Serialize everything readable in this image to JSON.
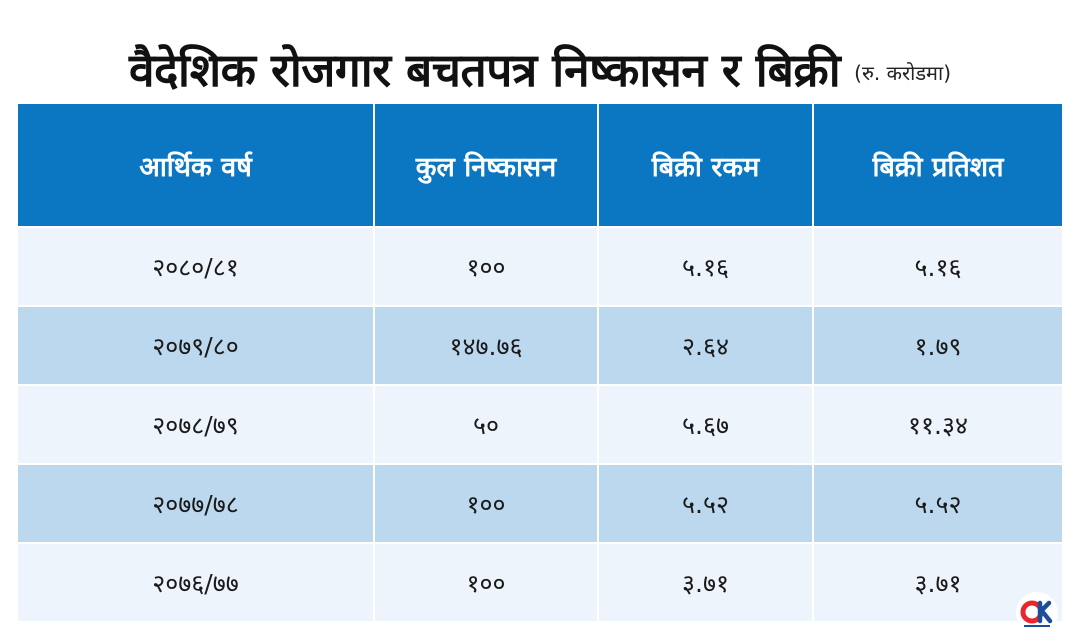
{
  "title": "वैदेशिक रोजगार बचतपत्र निष्कासन र बिक्री",
  "unit": "(रु. करोडमा)",
  "columns": [
    "आर्थिक वर्ष",
    "कुल निष्कासन",
    "बिक्री रकम",
    "बिक्री प्रतिशत"
  ],
  "rows": [
    [
      "२०८०/८१",
      "१००",
      "५.१६",
      "५.१६"
    ],
    [
      "२०७९/८०",
      "१४७.७६",
      "२.६४",
      "१.७९"
    ],
    [
      "२०७८/७९",
      "५०",
      "५.६७",
      "११.३४"
    ],
    [
      "२०७७/७८",
      "१००",
      "५.५२",
      "५.५२"
    ],
    [
      "२०७६/७७",
      "१००",
      "३.७१",
      "३.७१"
    ]
  ],
  "colors": {
    "header_bg": "#0b76c2",
    "row_light": "#eef4fb",
    "row_dark": "#bcd8ef",
    "logo_red": "#e8262b",
    "logo_blue": "#1b4f9c"
  },
  "logo": {
    "icon": "onlinekhabar-logo-icon"
  }
}
